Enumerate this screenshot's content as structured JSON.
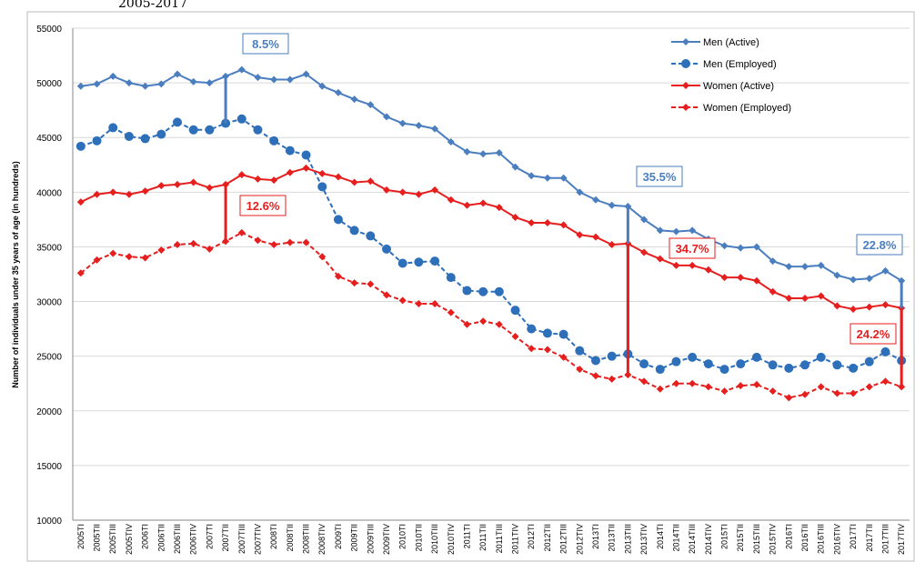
{
  "chart_data": {
    "type": "line",
    "title": "2005-2017",
    "y_label": "Number of individuals under 35 years of age (in hundreds)",
    "categories": [
      "2005TI",
      "2005TII",
      "2005TIII",
      "2005TIV",
      "2006TI",
      "2006TII",
      "2006TIII",
      "2006TIV",
      "2007TI",
      "2007TII",
      "2007TIII",
      "2007TIV",
      "2008TI",
      "2008TII",
      "2008TIII",
      "2008TIV",
      "2009TI",
      "2009TII",
      "2009TIII",
      "2009TIV",
      "2010TI",
      "2010TII",
      "2010TIII",
      "2010TIV",
      "2011TI",
      "2011TII",
      "2011TIII",
      "2011TIV",
      "2012TI",
      "2012TII",
      "2012TIII",
      "2012TIV",
      "2013TI",
      "2013TII",
      "2013TIII",
      "2013TIV",
      "2014TI",
      "2014TII",
      "2014TIII",
      "2014TIV",
      "2015TI",
      "2015TII",
      "2015TIII",
      "2015TIV",
      "2016TI",
      "2016TII",
      "2016TIII",
      "2016TIV",
      "2017TI",
      "2017TII",
      "2017TIII",
      "2017TIV"
    ],
    "series": [
      {
        "name": "Men (Active)",
        "color": "#4a7ebf",
        "dashed": false,
        "marker": "diamond",
        "values": [
          49700,
          49900,
          50600,
          50000,
          49700,
          49900,
          50800,
          50100,
          50000,
          50600,
          51200,
          50500,
          50300,
          50300,
          50800,
          49700,
          49100,
          48500,
          48000,
          46900,
          46300,
          46100,
          45800,
          44600,
          43700,
          43500,
          43600,
          42300,
          41500,
          41300,
          41300,
          40000,
          39300,
          38800,
          38700,
          37500,
          36500,
          36400,
          36500,
          35700,
          35100,
          34900,
          35000,
          33700,
          33200,
          33200,
          33300,
          32400,
          32000,
          32100,
          32800,
          31900
        ]
      },
      {
        "name": "Men (Employed)",
        "color": "#2e6fba",
        "dashed": true,
        "marker": "circle",
        "values": [
          44200,
          44700,
          45900,
          45100,
          44900,
          45300,
          46400,
          45700,
          45700,
          46300,
          46700,
          45700,
          44700,
          43800,
          43400,
          40500,
          37500,
          36500,
          36000,
          34800,
          33500,
          33600,
          33700,
          32200,
          31000,
          30900,
          30900,
          29200,
          27500,
          27100,
          27000,
          25500,
          24600,
          25000,
          25200,
          24300,
          23800,
          24500,
          24900,
          24300,
          23800,
          24300,
          24900,
          24200,
          23900,
          24200,
          24900,
          24200,
          23900,
          24500,
          25400,
          24600
        ]
      },
      {
        "name": "Women  (Active)",
        "color": "#e61e1e",
        "dashed": false,
        "marker": "diamond",
        "values": [
          39100,
          39800,
          40000,
          39800,
          40100,
          40600,
          40700,
          40900,
          40400,
          40700,
          41600,
          41200,
          41100,
          41800,
          42200,
          41700,
          41400,
          40900,
          41000,
          40200,
          40000,
          39800,
          40200,
          39300,
          38800,
          39000,
          38600,
          37700,
          37200,
          37200,
          37000,
          36100,
          35900,
          35200,
          35300,
          34500,
          33900,
          33300,
          33300,
          32900,
          32200,
          32200,
          31900,
          30900,
          30300,
          30300,
          30500,
          29600,
          29300,
          29500,
          29700,
          29400
        ]
      },
      {
        "name": "Women  (Employed)",
        "color": "#e61e1e",
        "dashed": true,
        "marker": "diamond",
        "values": [
          32600,
          33800,
          34400,
          34100,
          34000,
          34700,
          35200,
          35300,
          34800,
          35500,
          36300,
          35600,
          35200,
          35400,
          35400,
          34100,
          32300,
          31700,
          31600,
          30600,
          30100,
          29800,
          29800,
          29000,
          27900,
          28200,
          27900,
          26800,
          25700,
          25600,
          24900,
          23800,
          23200,
          22900,
          23300,
          22700,
          22000,
          22500,
          22500,
          22200,
          21800,
          22300,
          22400,
          21800,
          21200,
          21500,
          22200,
          21600,
          21600,
          22200,
          22700,
          22200
        ]
      }
    ],
    "annotations": [
      {
        "text": "8.5%",
        "category": "2007TII",
        "color": "#4a7ebf"
      },
      {
        "text": "12.6%",
        "category": "2007TII",
        "color": "#e61e1e"
      },
      {
        "text": "35.5%",
        "category": "2013TIII",
        "color": "#4a7ebf"
      },
      {
        "text": "34.7%",
        "category": "2013TIII",
        "color": "#e61e1e"
      },
      {
        "text": "22.8%",
        "category": "2017TIV",
        "color": "#4a7ebf"
      },
      {
        "text": "24.2%",
        "category": "2017TIV",
        "color": "#e61e1e"
      }
    ],
    "ylim": [
      10000,
      55000
    ],
    "yticks": [
      10000,
      15000,
      20000,
      25000,
      30000,
      35000,
      40000,
      45000,
      50000,
      55000
    ],
    "grid": true,
    "legend": "top-right"
  }
}
